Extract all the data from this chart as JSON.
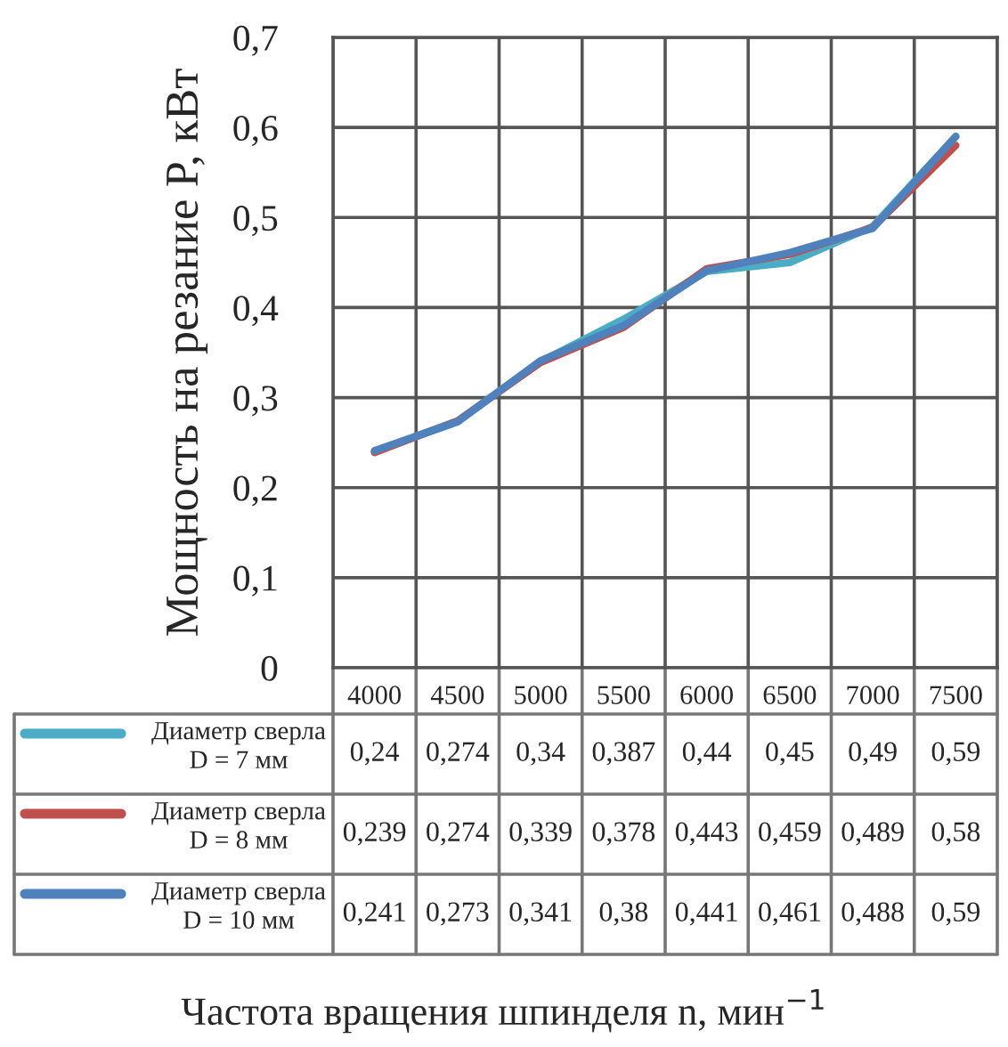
{
  "chart_data": {
    "type": "line",
    "annotations": [
      "Частота вращения шпинделя n, мин$^{−1}$"
    ],
    "ylabel": "Мощность на резание P, кВт",
    "categories": [
      "4000",
      "4500",
      "5000",
      "5500",
      "6000",
      "6500",
      "7000",
      "7500"
    ],
    "series": [
      {
        "name": "Диаметр сверла\nD = 7 мм",
        "color": "#4bacc6",
        "values": [
          0.24,
          0.274,
          0.34,
          0.387,
          0.44,
          0.45,
          0.49,
          0.59
        ],
        "value_labels": [
          "0,24",
          "0,274",
          "0,34",
          "0,387",
          "0,44",
          "0,45",
          "0,49",
          "0,59"
        ]
      },
      {
        "name": "Диаметр сверла\nD = 8 мм",
        "color": "#c0504d",
        "values": [
          0.239,
          0.274,
          0.339,
          0.378,
          0.443,
          0.459,
          0.489,
          0.58
        ],
        "value_labels": [
          "0,239",
          "0,274",
          "0,339",
          "0,378",
          "0,443",
          "0,459",
          "0,489",
          "0,58"
        ]
      },
      {
        "name": "Диаметр сверла\nD = 10 мм",
        "color": "#4f81bd",
        "values": [
          0.241,
          0.273,
          0.341,
          0.38,
          0.441,
          0.461,
          0.488,
          0.59
        ],
        "value_labels": [
          "0,241",
          "0,273",
          "0,341",
          "0,38",
          "0,441",
          "0,461",
          "0,488",
          "0,59"
        ]
      }
    ],
    "ylim": [
      0,
      0.7
    ],
    "yticks": [
      {
        "value": 0,
        "label": "0"
      },
      {
        "value": 0.1,
        "label": "0,1"
      },
      {
        "value": 0.2,
        "label": "0,2"
      },
      {
        "value": 0.3,
        "label": "0,3"
      },
      {
        "value": 0.4,
        "label": "0,4"
      },
      {
        "value": 0.5,
        "label": "0,5"
      },
      {
        "value": 0.6,
        "label": "0,6"
      },
      {
        "value": 0.7,
        "label": "0,7"
      }
    ],
    "grid": true,
    "legend": "bottom",
    "marker": "none",
    "line_style": "solid"
  }
}
